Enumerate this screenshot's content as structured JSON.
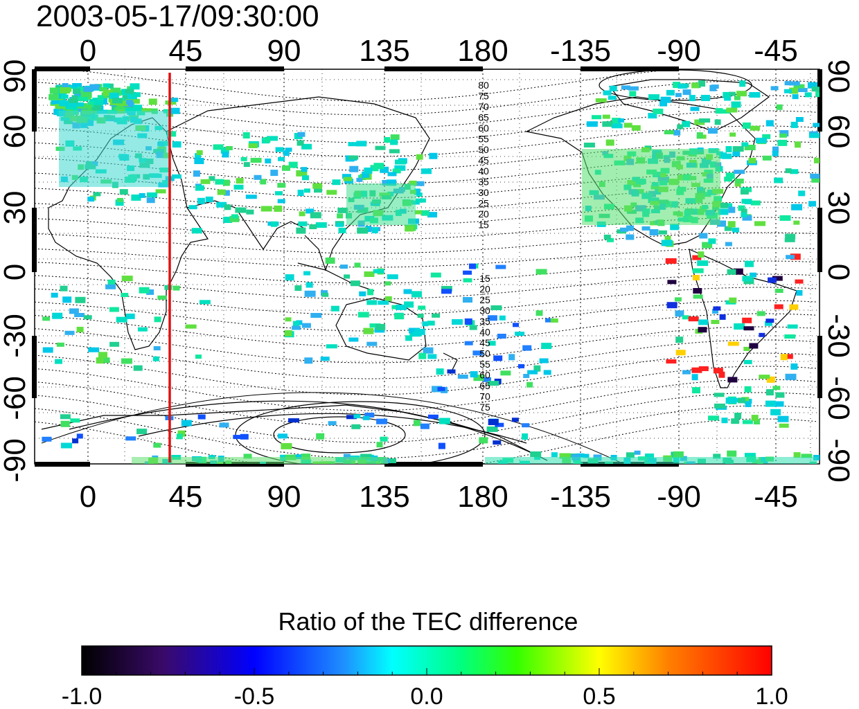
{
  "title": "2003-05-17/09:30:00",
  "map": {
    "lon_ticks_labels": [
      "0",
      "45",
      "90",
      "135",
      "180",
      "-135",
      "-90",
      "-45"
    ],
    "lat_ticks_labels": [
      "90",
      "60",
      "30",
      "0",
      "-30",
      "-60",
      "-90"
    ],
    "grid": true,
    "marker_line": {
      "longitude": 38,
      "color": "#e01010"
    },
    "contour_labels_north": [
      "80",
      "75",
      "70",
      "65",
      "60",
      "55",
      "50",
      "45",
      "40",
      "35",
      "30",
      "25",
      "20",
      "15"
    ],
    "contour_labels_south": [
      "15",
      "20",
      "25",
      "30",
      "35",
      "40",
      "45",
      "50",
      "55",
      "60",
      "65",
      "70",
      "75"
    ]
  },
  "colorbar": {
    "title": "Ratio of the TEC difference",
    "tick_labels": [
      "-1.0",
      "-0.5",
      "0.0",
      "0.5",
      "1.0"
    ],
    "range": [
      -1.0,
      1.0
    ]
  }
}
